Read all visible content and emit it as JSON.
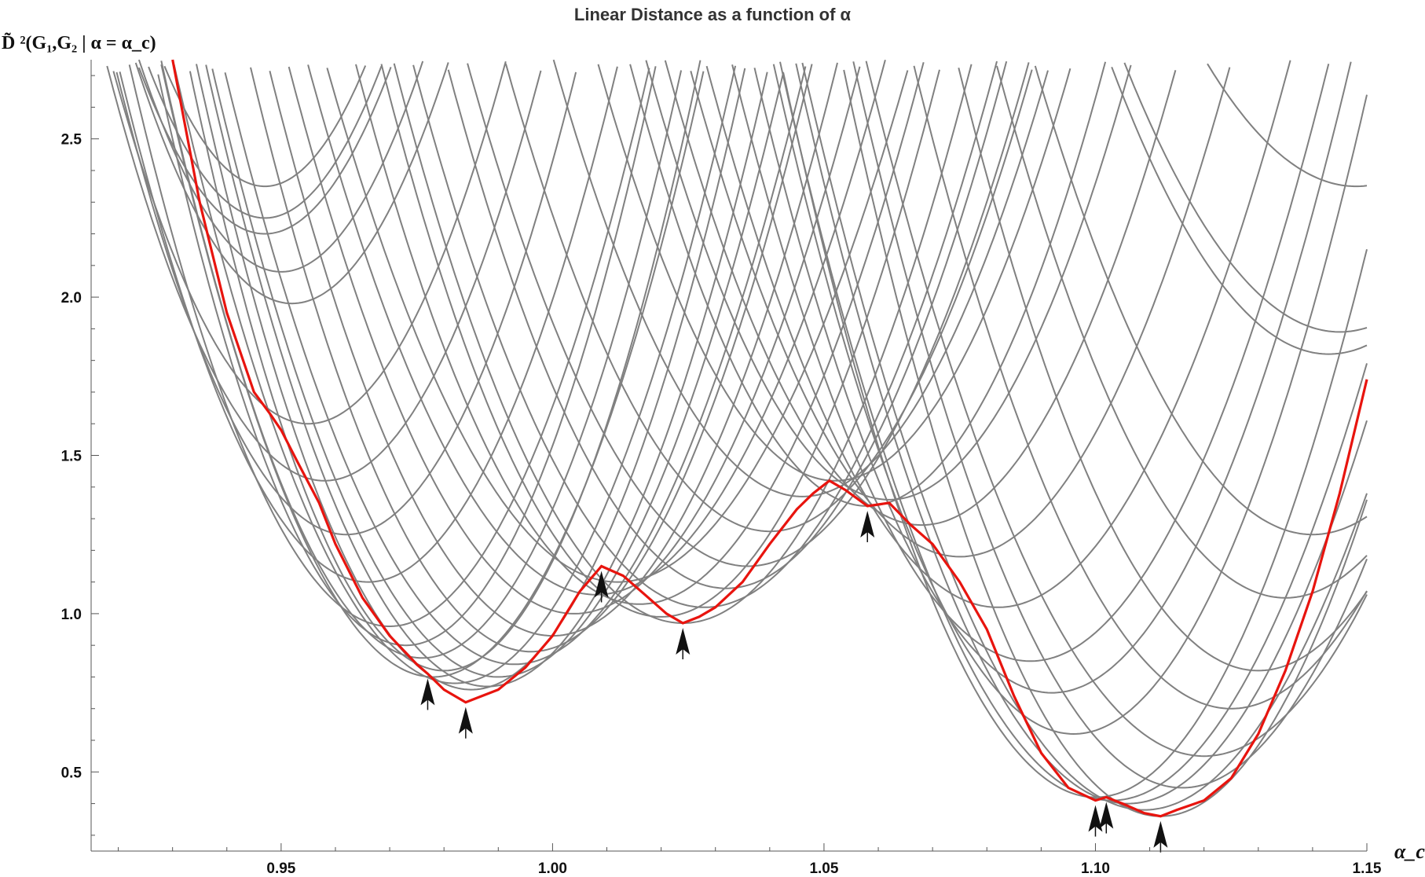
{
  "chart_data": {
    "type": "line",
    "title": "Linear Distance as a function of α",
    "ylabel": "D̃ ²(G₁,G₂ | α = α_c)",
    "xlabel": "α_c",
    "xlim": [
      0.915,
      1.15
    ],
    "ylim": [
      0.25,
      2.75
    ],
    "x_ticks": [
      0.95,
      1.0,
      1.05,
      1.1,
      1.15
    ],
    "x_tick_labels": [
      "0.95",
      "1.00",
      "1.05",
      "1.10",
      "1.15"
    ],
    "y_ticks": [
      0.5,
      1.0,
      1.5,
      2.0,
      2.5
    ],
    "y_tick_labels": [
      "0.5",
      "1.0",
      "1.5",
      "2.0",
      "2.5"
    ],
    "grid": false,
    "envelope": {
      "color": "#e8140e",
      "points": [
        [
          0.93,
          2.75
        ],
        [
          0.935,
          2.3
        ],
        [
          0.94,
          1.95
        ],
        [
          0.945,
          1.7
        ],
        [
          0.948,
          1.63
        ],
        [
          0.95,
          1.58
        ],
        [
          0.953,
          1.48
        ],
        [
          0.957,
          1.35
        ],
        [
          0.96,
          1.22
        ],
        [
          0.965,
          1.05
        ],
        [
          0.97,
          0.93
        ],
        [
          0.975,
          0.84
        ],
        [
          0.977,
          0.81
        ],
        [
          0.98,
          0.76
        ],
        [
          0.984,
          0.72
        ],
        [
          0.987,
          0.74
        ],
        [
          0.99,
          0.76
        ],
        [
          0.995,
          0.83
        ],
        [
          1.0,
          0.93
        ],
        [
          1.005,
          1.07
        ],
        [
          1.009,
          1.15
        ],
        [
          1.013,
          1.12
        ],
        [
          1.017,
          1.06
        ],
        [
          1.021,
          1.0
        ],
        [
          1.024,
          0.97
        ],
        [
          1.027,
          0.99
        ],
        [
          1.03,
          1.02
        ],
        [
          1.035,
          1.1
        ],
        [
          1.04,
          1.22
        ],
        [
          1.045,
          1.33
        ],
        [
          1.048,
          1.38
        ],
        [
          1.051,
          1.42
        ],
        [
          1.054,
          1.39
        ],
        [
          1.058,
          1.34
        ],
        [
          1.062,
          1.35
        ],
        [
          1.066,
          1.28
        ],
        [
          1.07,
          1.22
        ],
        [
          1.075,
          1.1
        ],
        [
          1.08,
          0.95
        ],
        [
          1.085,
          0.74
        ],
        [
          1.09,
          0.56
        ],
        [
          1.095,
          0.45
        ],
        [
          1.1,
          0.41
        ],
        [
          1.102,
          0.42
        ],
        [
          1.105,
          0.4
        ],
        [
          1.109,
          0.37
        ],
        [
          1.112,
          0.36
        ],
        [
          1.115,
          0.38
        ],
        [
          1.12,
          0.41
        ],
        [
          1.125,
          0.48
        ],
        [
          1.13,
          0.62
        ],
        [
          1.135,
          0.82
        ],
        [
          1.14,
          1.07
        ],
        [
          1.145,
          1.38
        ],
        [
          1.15,
          1.74
        ]
      ]
    },
    "curves": {
      "color": "#808080",
      "minima": [
        [
          0.947,
          2.35
        ],
        [
          0.947,
          2.25
        ],
        [
          0.947,
          2.2
        ],
        [
          0.95,
          2.08
        ],
        [
          0.952,
          1.98
        ],
        [
          0.955,
          1.6
        ],
        [
          0.958,
          1.42
        ],
        [
          0.962,
          1.25
        ],
        [
          0.966,
          1.1
        ],
        [
          0.97,
          0.96
        ],
        [
          0.973,
          0.9
        ],
        [
          0.976,
          0.86
        ],
        [
          0.978,
          0.8
        ],
        [
          0.98,
          0.82
        ],
        [
          0.982,
          0.78
        ],
        [
          0.985,
          0.76
        ],
        [
          0.988,
          0.77
        ],
        [
          0.99,
          0.8
        ],
        [
          0.993,
          0.84
        ],
        [
          0.996,
          0.88
        ],
        [
          1.0,
          0.93
        ],
        [
          1.004,
          1.0
        ],
        [
          1.008,
          1.06
        ],
        [
          1.012,
          1.1
        ],
        [
          1.016,
          1.03
        ],
        [
          1.02,
          0.99
        ],
        [
          1.024,
          0.97
        ],
        [
          1.028,
          1.02
        ],
        [
          1.032,
          1.08
        ],
        [
          1.036,
          1.15
        ],
        [
          1.04,
          1.26
        ],
        [
          1.046,
          1.37
        ],
        [
          1.052,
          1.42
        ],
        [
          1.058,
          1.34
        ],
        [
          1.062,
          1.36
        ],
        [
          1.068,
          1.28
        ],
        [
          1.075,
          1.18
        ],
        [
          1.082,
          1.02
        ],
        [
          1.088,
          0.85
        ],
        [
          1.092,
          0.75
        ],
        [
          1.096,
          0.62
        ],
        [
          1.1,
          0.42
        ],
        [
          1.103,
          0.41
        ],
        [
          1.106,
          0.4
        ],
        [
          1.109,
          0.38
        ],
        [
          1.112,
          0.36
        ],
        [
          1.116,
          0.45
        ],
        [
          1.12,
          0.55
        ],
        [
          1.125,
          0.7
        ],
        [
          1.13,
          0.82
        ],
        [
          1.135,
          1.05
        ],
        [
          1.14,
          1.25
        ],
        [
          1.143,
          1.82
        ],
        [
          1.145,
          1.89
        ],
        [
          1.148,
          2.35
        ]
      ],
      "widths": [
        0.03,
        0.031,
        0.032,
        0.032,
        0.033,
        0.034,
        0.035,
        0.035,
        0.036,
        0.036,
        0.034,
        0.035,
        0.036,
        0.034,
        0.037,
        0.036,
        0.037,
        0.038,
        0.039,
        0.038,
        0.039,
        0.04,
        0.041,
        0.042,
        0.04,
        0.039,
        0.04,
        0.041,
        0.04,
        0.041,
        0.04,
        0.039,
        0.038,
        0.037,
        0.038,
        0.039,
        0.04,
        0.041,
        0.04,
        0.039,
        0.038,
        0.038,
        0.04,
        0.04,
        0.041,
        0.038,
        0.04,
        0.042,
        0.041,
        0.04,
        0.041,
        0.042,
        0.042,
        0.043,
        0.044
      ]
    },
    "annotations": {
      "type": "arrows",
      "description": "",
      "points": [
        [
          0.977,
          0.81
        ],
        [
          0.984,
          0.72
        ],
        [
          1.009,
          1.15
        ],
        [
          1.024,
          0.97
        ],
        [
          1.058,
          1.34
        ],
        [
          1.1,
          0.41
        ],
        [
          1.102,
          0.42
        ],
        [
          1.112,
          0.36
        ]
      ]
    }
  }
}
